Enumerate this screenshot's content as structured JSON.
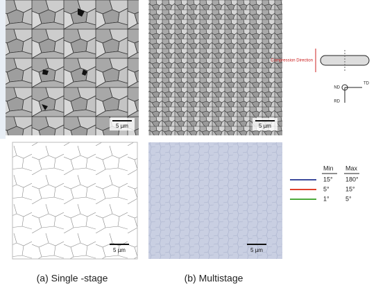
{
  "panels": {
    "a": {
      "caption": "(a) Single -stage",
      "scale_top": "5 µm",
      "scale_bottom": "5 µm"
    },
    "b": {
      "caption": "(b) Multistage",
      "scale_top": "5 µm",
      "scale_bottom": "5 µm"
    }
  },
  "schematic": {
    "compression": "Compression Direction",
    "nd": "ND",
    "td": "TD",
    "rd": "RD"
  },
  "legend": {
    "headers": [
      "Min",
      "Max"
    ],
    "rows": [
      {
        "color": "#3d4b9c",
        "min": "15°",
        "max": "180°"
      },
      {
        "color": "#e0402a",
        "min": "5°",
        "max": "15°"
      },
      {
        "color": "#4caa3a",
        "min": "1°",
        "max": "5°"
      }
    ]
  }
}
